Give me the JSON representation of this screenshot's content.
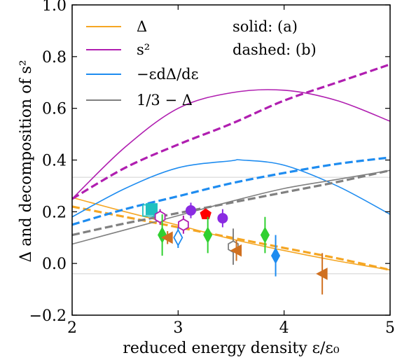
{
  "chart_data": {
    "type": "line",
    "xlabel": "reduced energy density ε/ε₀",
    "ylabel": "Δ and decomposition of s²",
    "xlim": [
      2,
      5
    ],
    "ylim": [
      -0.2,
      1.0
    ],
    "xticks": [
      2,
      3,
      4,
      5
    ],
    "xtick_labels": [
      "2",
      "3",
      "4",
      "5"
    ],
    "yticks": [
      -0.2,
      0.0,
      0.2,
      0.4,
      0.6,
      0.8,
      1.0
    ],
    "ytick_labels": [
      "−0.2",
      "0.0",
      "0.2",
      "0.4",
      "0.6",
      "0.8",
      "1.0"
    ],
    "reference_lines": [
      0.3333,
      -0.04
    ],
    "annotations": [
      "solid: (a)",
      "dashed: (b)"
    ],
    "legend_position": "top-left",
    "series": [
      {
        "name": "Δ",
        "color": "#f5a623",
        "style": "solid",
        "x": [
          2.0,
          2.5,
          3.0,
          3.5,
          4.0,
          4.5,
          5.0
        ],
        "y": [
          0.255,
          0.2,
          0.148,
          0.095,
          0.05,
          0.01,
          -0.025
        ]
      },
      {
        "name": "Δ",
        "color": "#f5a623",
        "style": "dashed",
        "x": [
          2.0,
          2.5,
          3.0,
          3.5,
          4.0,
          4.5,
          5.0
        ],
        "y": [
          0.22,
          0.18,
          0.14,
          0.1,
          0.06,
          0.02,
          -0.025
        ]
      },
      {
        "name": "s²",
        "color": "#b01eb0",
        "style": "solid",
        "x": [
          2.0,
          2.5,
          3.0,
          3.5,
          4.0,
          4.5,
          5.0
        ],
        "y": [
          0.25,
          0.45,
          0.6,
          0.66,
          0.67,
          0.63,
          0.55
        ]
      },
      {
        "name": "s²",
        "color": "#b01eb0",
        "style": "dashed",
        "x": [
          2.0,
          2.5,
          3.0,
          3.5,
          4.0,
          4.5,
          5.0
        ],
        "y": [
          0.25,
          0.37,
          0.46,
          0.54,
          0.63,
          0.7,
          0.77
        ]
      },
      {
        "name": "−εdΔ/dε",
        "color": "#1e8cf0",
        "style": "solid",
        "x": [
          2.0,
          2.5,
          3.0,
          3.5,
          3.6,
          4.0,
          4.5,
          5.0
        ],
        "y": [
          0.18,
          0.29,
          0.37,
          0.397,
          0.4,
          0.38,
          0.3,
          0.19
        ]
      },
      {
        "name": "−εdΔ/dε",
        "color": "#1e8cf0",
        "style": "dashed",
        "x": [
          2.0,
          2.5,
          3.0,
          3.5,
          4.0,
          4.5,
          5.0
        ],
        "y": [
          0.15,
          0.21,
          0.26,
          0.31,
          0.35,
          0.385,
          0.41
        ]
      },
      {
        "name": "1/3 − Δ",
        "color": "#808080",
        "style": "solid",
        "x": [
          2.0,
          2.5,
          3.0,
          3.5,
          4.0,
          4.5,
          5.0
        ],
        "y": [
          0.075,
          0.13,
          0.185,
          0.24,
          0.29,
          0.325,
          0.36
        ]
      },
      {
        "name": "1/3 − Δ",
        "color": "#808080",
        "style": "dashed",
        "x": [
          2.0,
          2.5,
          3.0,
          3.5,
          4.0,
          4.5,
          5.0
        ],
        "y": [
          0.11,
          0.155,
          0.195,
          0.235,
          0.275,
          0.315,
          0.36
        ]
      }
    ],
    "points": [
      {
        "x": 2.72,
        "y": 0.205,
        "err": 0.02,
        "marker": "square-open",
        "color": "#20c0c0"
      },
      {
        "x": 2.75,
        "y": 0.21,
        "err": 0.02,
        "marker": "square",
        "color": "#20c0c0"
      },
      {
        "x": 2.83,
        "y": 0.18,
        "err": 0.03,
        "marker": "hexagon-open",
        "color": "#b01eb0"
      },
      {
        "x": 2.85,
        "y": 0.11,
        "err": 0.08,
        "marker": "diamond",
        "color": "#30d030"
      },
      {
        "x": 2.9,
        "y": 0.1,
        "err": 0.025,
        "marker": "triangle-left",
        "color": "#d07020"
      },
      {
        "x": 3.0,
        "y": 0.1,
        "err": 0.04,
        "marker": "diamond-open",
        "color": "#1e8cf0"
      },
      {
        "x": 3.05,
        "y": 0.15,
        "err": 0.035,
        "marker": "hexagon-open",
        "color": "#b01eb0"
      },
      {
        "x": 3.12,
        "y": 0.205,
        "err": 0.03,
        "marker": "circle",
        "color": "#8a2be2"
      },
      {
        "x": 3.26,
        "y": 0.19,
        "err": 0.01,
        "marker": "pentagon",
        "color": "#ff0000"
      },
      {
        "x": 3.28,
        "y": 0.11,
        "err": 0.07,
        "marker": "diamond",
        "color": "#30d030"
      },
      {
        "x": 3.42,
        "y": 0.175,
        "err": 0.035,
        "marker": "circle",
        "color": "#8a2be2"
      },
      {
        "x": 3.52,
        "y": 0.065,
        "err": 0.07,
        "marker": "hexagon-open",
        "color": "#808080"
      },
      {
        "x": 3.55,
        "y": 0.05,
        "err": 0.04,
        "marker": "triangle-left",
        "color": "#d07020"
      },
      {
        "x": 3.82,
        "y": 0.11,
        "err": 0.07,
        "marker": "diamond",
        "color": "#30d030"
      },
      {
        "x": 3.92,
        "y": 0.03,
        "err": 0.08,
        "marker": "diamond",
        "color": "#1e8cf0"
      },
      {
        "x": 4.36,
        "y": -0.04,
        "err": 0.08,
        "marker": "triangle-left",
        "color": "#d07020"
      }
    ]
  }
}
